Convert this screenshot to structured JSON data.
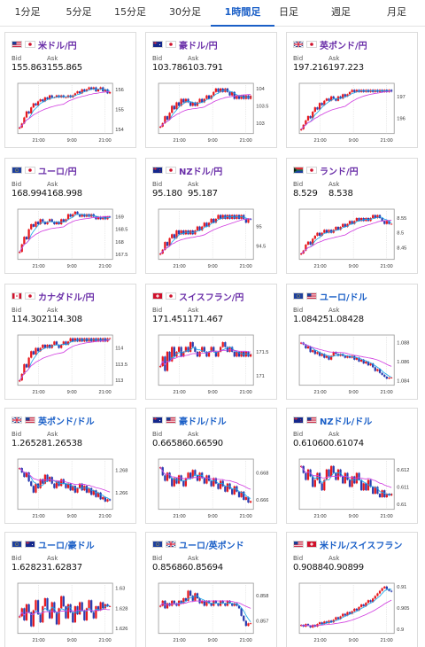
{
  "tabs": [
    {
      "label": "1分足",
      "active": false
    },
    {
      "label": "5分足",
      "active": false
    },
    {
      "label": "15分足",
      "active": false
    },
    {
      "label": "30分足",
      "active": false
    },
    {
      "label": "1時間足",
      "active": true
    },
    {
      "label": "日足",
      "active": false
    },
    {
      "label": "週足",
      "active": false
    },
    {
      "label": "月足",
      "active": false
    }
  ],
  "bid_label": "Bid",
  "ask_label": "Ask",
  "colors": {
    "up": "#e8191e",
    "down": "#2a3db0",
    "ma_fast": "#19a8e8",
    "ma_slow": "#d13ee0",
    "pair_purple": "#6a2ea8",
    "pair_blue": "#1a5fc7"
  },
  "cards": [
    {
      "pair": "米ドル/円",
      "flags": [
        "flag-us",
        "flag-jp"
      ],
      "bid": "155.863",
      "ask": "155.865",
      "pair_color": "purple",
      "chart_data": {
        "type": "candlestick",
        "x_ticks": [
          "21:00",
          "9:00",
          "21:00"
        ],
        "y_ticks": [
          "156",
          "155",
          "154"
        ],
        "ylim": [
          153.8,
          156.3
        ],
        "close": [
          154.1,
          154.3,
          154.6,
          154.9,
          154.8,
          155.1,
          155.3,
          155.2,
          155.4,
          155.5,
          155.4,
          155.6,
          155.5,
          155.7,
          155.6,
          155.6,
          155.7,
          155.6,
          155.7,
          155.6,
          155.6,
          155.7,
          155.6,
          155.7,
          155.8,
          155.9,
          155.8,
          156.0,
          155.9,
          156.0,
          156.1,
          156.0,
          156.1,
          155.9,
          156.0,
          156.1,
          155.9,
          156.0,
          155.8,
          155.86
        ]
      }
    },
    {
      "pair": "豪ドル/円",
      "flags": [
        "flag-au",
        "flag-jp"
      ],
      "bid": "103.786",
      "ask": "103.791",
      "pair_color": "purple",
      "chart_data": {
        "type": "candlestick",
        "x_ticks": [
          "21:00",
          "9:00",
          "21:00"
        ],
        "y_ticks": [
          "104",
          "103.5",
          "103"
        ],
        "ylim": [
          102.7,
          104.15
        ],
        "close": [
          102.9,
          103.0,
          103.2,
          103.1,
          103.3,
          103.5,
          103.4,
          103.6,
          103.5,
          103.7,
          103.6,
          103.7,
          103.6,
          103.5,
          103.6,
          103.5,
          103.6,
          103.7,
          103.6,
          103.7,
          103.8,
          103.7,
          103.8,
          103.9,
          104.0,
          103.9,
          104.0,
          103.9,
          104.0,
          103.9,
          103.8,
          103.9,
          103.7,
          103.8,
          103.7,
          103.8,
          103.7,
          103.8,
          103.7,
          103.79
        ]
      }
    },
    {
      "pair": "英ポンド/円",
      "flags": [
        "flag-gb",
        "flag-jp"
      ],
      "bid": "197.216",
      "ask": "197.223",
      "pair_color": "purple",
      "chart_data": {
        "type": "candlestick",
        "x_ticks": [
          "21:00",
          "9:00",
          "21:00"
        ],
        "y_ticks": [
          "197",
          "196"
        ],
        "ylim": [
          195.3,
          197.6
        ],
        "close": [
          195.5,
          195.7,
          195.9,
          196.1,
          196.0,
          196.3,
          196.5,
          196.4,
          196.7,
          196.6,
          196.8,
          196.9,
          196.8,
          197.0,
          196.9,
          196.8,
          197.0,
          196.9,
          197.1,
          197.0,
          197.1,
          197.2,
          197.3,
          197.2,
          197.3,
          197.2,
          197.3,
          197.2,
          197.3,
          197.2,
          197.3,
          197.2,
          197.3,
          197.2,
          197.3,
          197.2,
          197.3,
          197.2,
          197.3,
          197.22
        ]
      }
    },
    {
      "pair": "ユーロ/円",
      "flags": [
        "flag-eu",
        "flag-jp"
      ],
      "bid": "168.994",
      "ask": "168.998",
      "pair_color": "purple",
      "chart_data": {
        "type": "candlestick",
        "x_ticks": [
          "21:00",
          "9:00",
          "21:00"
        ],
        "y_ticks": [
          "169",
          "168.5",
          "168",
          "167.5"
        ],
        "ylim": [
          167.3,
          169.3
        ],
        "close": [
          167.6,
          167.9,
          168.2,
          168.1,
          168.5,
          168.7,
          168.6,
          168.8,
          168.7,
          168.9,
          168.8,
          168.7,
          168.8,
          168.9,
          168.8,
          168.7,
          168.8,
          168.7,
          168.9,
          168.8,
          168.9,
          169.1,
          169.0,
          169.1,
          169.2,
          169.1,
          169.0,
          169.1,
          169.0,
          169.1,
          169.0,
          169.1,
          169.0,
          168.9,
          169.0,
          168.9,
          169.0,
          168.9,
          169.0,
          168.99
        ]
      }
    },
    {
      "pair": "NZドル/円",
      "flags": [
        "flag-nz",
        "flag-jp"
      ],
      "bid": "95.180",
      "ask": "95.187",
      "pair_color": "purple",
      "chart_data": {
        "type": "candlestick",
        "x_ticks": [
          "21:00",
          "9:00",
          "21:00"
        ],
        "y_ticks": [
          "95",
          "94.5"
        ],
        "ylim": [
          94.15,
          95.45
        ],
        "close": [
          94.3,
          94.4,
          94.6,
          94.5,
          94.7,
          94.8,
          94.7,
          94.9,
          94.8,
          94.9,
          94.8,
          94.9,
          94.8,
          94.9,
          94.8,
          94.9,
          95.0,
          94.9,
          95.0,
          95.1,
          95.0,
          95.1,
          95.2,
          95.1,
          95.2,
          95.3,
          95.2,
          95.3,
          95.2,
          95.3,
          95.2,
          95.3,
          95.2,
          95.3,
          95.2,
          95.3,
          95.2,
          95.1,
          95.2,
          95.18
        ]
      }
    },
    {
      "pair": "ランド/円",
      "flags": [
        "flag-za",
        "flag-jp"
      ],
      "bid": "8.529",
      "ask": "8.538",
      "pair_color": "purple",
      "chart_data": {
        "type": "candlestick",
        "x_ticks": [
          "21:00",
          "9:00",
          "21:00"
        ],
        "y_ticks": [
          "8.55",
          "8.5",
          "8.45"
        ],
        "ylim": [
          8.41,
          8.58
        ],
        "close": [
          8.43,
          8.44,
          8.46,
          8.47,
          8.46,
          8.48,
          8.49,
          8.5,
          8.49,
          8.5,
          8.51,
          8.5,
          8.51,
          8.5,
          8.51,
          8.52,
          8.51,
          8.52,
          8.53,
          8.52,
          8.53,
          8.54,
          8.53,
          8.54,
          8.55,
          8.54,
          8.55,
          8.54,
          8.55,
          8.54,
          8.55,
          8.56,
          8.55,
          8.56,
          8.55,
          8.54,
          8.53,
          8.54,
          8.53,
          8.53
        ]
      }
    },
    {
      "pair": "カナダドル/円",
      "flags": [
        "flag-ca",
        "flag-jp"
      ],
      "bid": "114.302",
      "ask": "114.308",
      "pair_color": "purple",
      "chart_data": {
        "type": "candlestick",
        "x_ticks": [
          "21:00",
          "9:00",
          "21:00"
        ],
        "y_ticks": [
          "114",
          "113.5",
          "113"
        ],
        "ylim": [
          112.85,
          114.4
        ],
        "close": [
          113.0,
          113.2,
          113.5,
          113.4,
          113.7,
          113.9,
          113.8,
          114.0,
          113.9,
          114.0,
          114.1,
          114.0,
          114.1,
          114.0,
          114.1,
          114.2,
          114.1,
          114.0,
          114.1,
          114.2,
          114.1,
          114.2,
          114.3,
          114.2,
          114.3,
          114.2,
          114.3,
          114.2,
          114.3,
          114.2,
          114.3,
          114.2,
          114.3,
          114.2,
          114.3,
          114.2,
          114.3,
          114.2,
          114.3,
          114.3
        ]
      }
    },
    {
      "pair": "スイスフラン/円",
      "flags": [
        "flag-ch",
        "flag-jp"
      ],
      "bid": "171.451",
      "ask": "171.467",
      "pair_color": "purple",
      "chart_data": {
        "type": "candlestick",
        "x_ticks": [
          "21:00",
          "9:00",
          "21:00"
        ],
        "y_ticks": [
          "171.5",
          "171"
        ],
        "ylim": [
          170.8,
          171.85
        ],
        "close": [
          171.2,
          171.4,
          171.1,
          171.5,
          171.3,
          171.6,
          171.4,
          171.5,
          171.6,
          171.4,
          171.5,
          171.6,
          171.5,
          171.7,
          171.6,
          171.5,
          171.4,
          171.5,
          171.6,
          171.5,
          171.4,
          171.5,
          171.6,
          171.5,
          171.4,
          171.5,
          171.6,
          171.7,
          171.6,
          171.5,
          171.6,
          171.5,
          171.4,
          171.5,
          171.4,
          171.5,
          171.4,
          171.5,
          171.4,
          171.45
        ]
      }
    },
    {
      "pair": "ユーロ/ドル",
      "flags": [
        "flag-eu",
        "flag-us"
      ],
      "bid": "1.08425",
      "ask": "1.08428",
      "pair_color": "blue",
      "chart_data": {
        "type": "candlestick",
        "x_ticks": [
          "21:00",
          "9:00",
          "21:00"
        ],
        "y_ticks": [
          "1.088",
          "1.086",
          "1.084"
        ],
        "ylim": [
          1.0835,
          1.0888
        ],
        "close": [
          1.088,
          1.0878,
          1.0874,
          1.0876,
          1.087,
          1.0872,
          1.0868,
          1.087,
          1.0866,
          1.0868,
          1.0864,
          1.0866,
          1.0862,
          1.0866,
          1.087,
          1.0868,
          1.0866,
          1.0868,
          1.0866,
          1.0864,
          1.0866,
          1.0864,
          1.0866,
          1.0862,
          1.0864,
          1.086,
          1.0862,
          1.0858,
          1.086,
          1.0856,
          1.0858,
          1.0854,
          1.085,
          1.0852,
          1.0848,
          1.0846,
          1.0844,
          1.0842,
          1.0843,
          1.0843
        ]
      }
    },
    {
      "pair": "英ポンド/ドル",
      "flags": [
        "flag-gb",
        "flag-us"
      ],
      "bid": "1.26528",
      "ask": "1.26538",
      "pair_color": "blue",
      "chart_data": {
        "type": "candlestick",
        "x_ticks": [
          "21:00",
          "9:00",
          "21:00"
        ],
        "y_ticks": [
          "1.268",
          "1.266"
        ],
        "ylim": [
          1.2645,
          1.269
        ],
        "close": [
          1.2682,
          1.2678,
          1.2674,
          1.2678,
          1.267,
          1.2666,
          1.266,
          1.2668,
          1.2664,
          1.2672,
          1.2668,
          1.2676,
          1.267,
          1.2674,
          1.2668,
          1.2664,
          1.267,
          1.2666,
          1.2672,
          1.2668,
          1.2664,
          1.2668,
          1.2662,
          1.2666,
          1.266,
          1.2664,
          1.2668,
          1.2662,
          1.2666,
          1.266,
          1.2664,
          1.2658,
          1.2662,
          1.2656,
          1.266,
          1.2654,
          1.2656,
          1.2652,
          1.2654,
          1.2653
        ]
      }
    },
    {
      "pair": "豪ドル/ドル",
      "flags": [
        "flag-au",
        "flag-us"
      ],
      "bid": "0.66586",
      "ask": "0.66590",
      "pair_color": "blue",
      "chart_data": {
        "type": "candlestick",
        "x_ticks": [
          "21:00",
          "9:00",
          "21:00"
        ],
        "y_ticks": [
          "0.668",
          "0.666"
        ],
        "ylim": [
          0.6653,
          0.669
        ],
        "close": [
          0.6684,
          0.6678,
          0.6674,
          0.668,
          0.6676,
          0.667,
          0.6676,
          0.6672,
          0.6678,
          0.6674,
          0.667,
          0.6676,
          0.668,
          0.6676,
          0.6682,
          0.6678,
          0.6674,
          0.668,
          0.6676,
          0.6672,
          0.6678,
          0.6674,
          0.667,
          0.6676,
          0.6672,
          0.6668,
          0.6674,
          0.667,
          0.6666,
          0.6672,
          0.6668,
          0.6664,
          0.667,
          0.6666,
          0.6662,
          0.6666,
          0.666,
          0.6662,
          0.6658,
          0.6659
        ]
      }
    },
    {
      "pair": "NZドル/ドル",
      "flags": [
        "flag-nz",
        "flag-us"
      ],
      "bid": "0.61060",
      "ask": "0.61074",
      "pair_color": "blue",
      "chart_data": {
        "type": "candlestick",
        "x_ticks": [
          "21:00",
          "9:00",
          "21:00"
        ],
        "y_ticks": [
          "0.612",
          "0.611",
          "0.61"
        ],
        "ylim": [
          0.6097,
          0.6126
        ],
        "close": [
          0.6122,
          0.6118,
          0.6114,
          0.612,
          0.6116,
          0.611,
          0.6114,
          0.6118,
          0.6112,
          0.6108,
          0.6114,
          0.612,
          0.6116,
          0.6122,
          0.6118,
          0.6114,
          0.612,
          0.6116,
          0.6112,
          0.6118,
          0.6114,
          0.611,
          0.6116,
          0.6112,
          0.6118,
          0.6114,
          0.6108,
          0.6112,
          0.6108,
          0.6114,
          0.611,
          0.6106,
          0.611,
          0.6106,
          0.6104,
          0.6108,
          0.6104,
          0.6106,
          0.6105,
          0.6106
        ]
      }
    },
    {
      "pair": "ユーロ/豪ドル",
      "flags": [
        "flag-eu",
        "flag-au"
      ],
      "bid": "1.62823",
      "ask": "1.62837",
      "pair_color": "blue",
      "chart_data": {
        "type": "candlestick",
        "x_ticks": [
          "21:00",
          "9:00",
          "21:00"
        ],
        "y_ticks": [
          "1.63",
          "1.628",
          "1.626"
        ],
        "ylim": [
          1.6255,
          1.6305
        ],
        "close": [
          1.6272,
          1.628,
          1.6268,
          1.6284,
          1.6276,
          1.6262,
          1.6278,
          1.6288,
          1.6274,
          1.6266,
          1.6282,
          1.629,
          1.6278,
          1.627,
          1.6286,
          1.6276,
          1.6264,
          1.628,
          1.6292,
          1.6282,
          1.627,
          1.6284,
          1.6276,
          1.6266,
          1.6282,
          1.6274,
          1.6286,
          1.6278,
          1.6268,
          1.628,
          1.6288,
          1.6276,
          1.627,
          1.6282,
          1.6278,
          1.6286,
          1.628,
          1.6284,
          1.6282,
          1.6282
        ]
      }
    },
    {
      "pair": "ユーロ/英ポンド",
      "flags": [
        "flag-eu",
        "flag-gb"
      ],
      "bid": "0.85686",
      "ask": "0.85694",
      "pair_color": "blue",
      "chart_data": {
        "type": "candlestick",
        "x_ticks": [
          "21:00",
          "9:00",
          "21:00"
        ],
        "y_ticks": [
          "0.858",
          "0.857"
        ],
        "ylim": [
          0.8565,
          0.8585
        ],
        "close": [
          0.8576,
          0.8578,
          0.8575,
          0.8577,
          0.8576,
          0.8578,
          0.8577,
          0.8576,
          0.8578,
          0.8577,
          0.8579,
          0.8578,
          0.8582,
          0.858,
          0.8578,
          0.8581,
          0.8579,
          0.8577,
          0.8578,
          0.8576,
          0.8578,
          0.8577,
          0.8576,
          0.8578,
          0.8577,
          0.8576,
          0.8578,
          0.8577,
          0.8576,
          0.8578,
          0.8577,
          0.8576,
          0.8577,
          0.8576,
          0.8575,
          0.8572,
          0.857,
          0.8568,
          0.8569,
          0.8569
        ]
      }
    },
    {
      "pair": "米ドル/スイスフラン",
      "flags": [
        "flag-us",
        "flag-ch"
      ],
      "bid": "0.90884",
      "ask": "0.90899",
      "pair_color": "blue",
      "chart_data": {
        "type": "candlestick",
        "x_ticks": [
          "21:00",
          "9:00",
          "21:00"
        ],
        "y_ticks": [
          "0.91",
          "0.905",
          "0.9"
        ],
        "ylim": [
          0.899,
          0.9108
        ],
        "close": [
          0.901,
          0.9006,
          0.9012,
          0.9008,
          0.9004,
          0.901,
          0.9006,
          0.9012,
          0.9016,
          0.9012,
          0.9018,
          0.9014,
          0.902,
          0.9016,
          0.9022,
          0.9028,
          0.9024,
          0.903,
          0.9036,
          0.9032,
          0.904,
          0.9036,
          0.9042,
          0.9048,
          0.9044,
          0.9052,
          0.9058,
          0.9054,
          0.9062,
          0.9068,
          0.9064,
          0.9072,
          0.9078,
          0.9084,
          0.909,
          0.9096,
          0.91,
          0.9094,
          0.909,
          0.9088
        ]
      }
    }
  ]
}
